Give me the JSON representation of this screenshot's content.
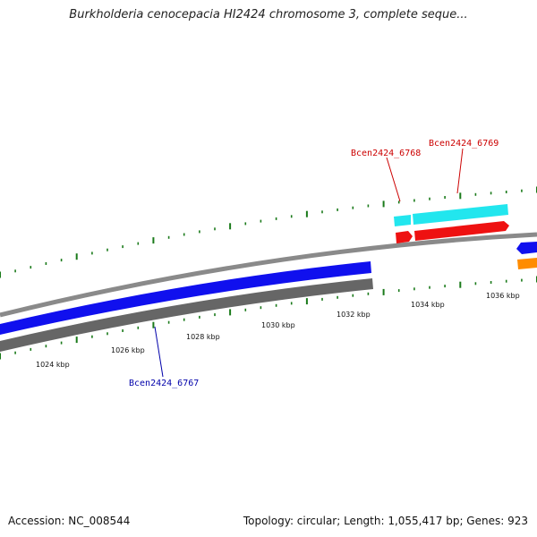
{
  "title": "Burkholderia cenocepacia HI2424 chromosome 3, complete seque...",
  "footer": {
    "accession": "Accession: NC_008544",
    "summary": "Topology: circular; Length: 1,055,417 bp; Genes: 923"
  },
  "colors": {
    "backbone": "#8a8a8a",
    "forward_gene": "#1010ee",
    "reverse_gene": "#666666",
    "highlight_cyan": "#22e6ee",
    "highlight_red": "#ee1111",
    "partial_orange": "#ff8c00",
    "tick": "#1a7a1a",
    "label_red": "#cc0000",
    "label_blue": "#0000aa"
  },
  "ticks": {
    "labels": [
      "1024 kbp",
      "1026 kbp",
      "1028 kbp",
      "1030 kbp",
      "1032 kbp",
      "1034 kbp",
      "1036 kbp"
    ]
  },
  "genes": {
    "labels": {
      "g6768": "Bcen2424_6768",
      "g6769": "Bcen2424_6769",
      "g6767": "Bcen2424_6767"
    }
  }
}
